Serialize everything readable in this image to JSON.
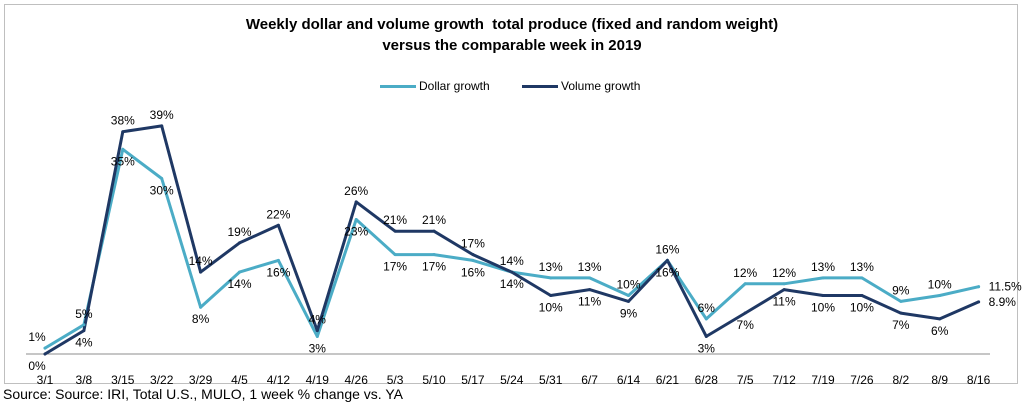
{
  "chart_data": {
    "type": "line",
    "title_line1": "Weekly dollar and volume growth  total produce (fixed and random weight)",
    "title_line2": "versus the comparable week in 2019",
    "categories": [
      "3/1",
      "3/8",
      "3/15",
      "3/22",
      "3/29",
      "4/5",
      "4/12",
      "4/19",
      "4/26",
      "5/3",
      "5/10",
      "5/17",
      "5/24",
      "5/31",
      "6/7",
      "6/14",
      "6/21",
      "6/28",
      "7/5",
      "7/12",
      "7/19",
      "7/26",
      "8/2",
      "8/9",
      "8/16"
    ],
    "series": [
      {
        "name": "Dollar growth",
        "color": "#4bacc6",
        "values": [
          1,
          5,
          35,
          30,
          8,
          14,
          16,
          3,
          23,
          17,
          17,
          16,
          14,
          13,
          13,
          10,
          16,
          6,
          12,
          12,
          13,
          13,
          9,
          10,
          11.5
        ],
        "labels": [
          "1%",
          "5%",
          "35%",
          "30%",
          "8%",
          "14%",
          "16%",
          "3%",
          "23%",
          "17%",
          "17%",
          "16%",
          "14%",
          "13%",
          "13%",
          "10%",
          "16%",
          "6%",
          "12%",
          "12%",
          "13%",
          "13%",
          "9%",
          "10%",
          "11.5%"
        ]
      },
      {
        "name": "Volume growth",
        "color": "#1f3864",
        "values": [
          0,
          4,
          38,
          39,
          14,
          19,
          22,
          4,
          26,
          21,
          21,
          17,
          14,
          10,
          11,
          9,
          16,
          3,
          7,
          11,
          10,
          10,
          7,
          6,
          8.9
        ],
        "labels": [
          "0%",
          "4%",
          "38%",
          "39%",
          "14%",
          "19%",
          "22%",
          "4%",
          "26%",
          "21%",
          "21%",
          "17%",
          "14%",
          "10%",
          "11%",
          "9%",
          "16%",
          "3%",
          "7%",
          "11%",
          "10%",
          "10%",
          "7%",
          "6%",
          "8.9%"
        ]
      }
    ],
    "ylim": [
      0,
      45
    ],
    "xlabel": "",
    "ylabel": "",
    "grid": false,
    "legend": "top-center"
  },
  "source": "Source: Source: IRI, Total U.S., MULO, 1 week % change vs. YA"
}
